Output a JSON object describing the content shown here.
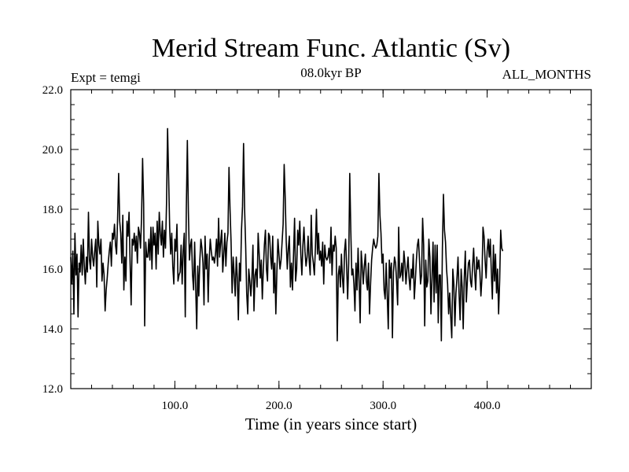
{
  "chart_data": {
    "type": "line",
    "title": "Merid Stream Func. Atlantic (Sv)",
    "left_note": "Expt = temgi",
    "center_note": "08.0kyr BP",
    "right_note": "ALL_MONTHS",
    "xlabel": "Time (in years since start)",
    "ylabel": "",
    "xlim": [
      0,
      500
    ],
    "ylim": [
      12,
      22
    ],
    "xticks": [
      100,
      200,
      300,
      400
    ],
    "xtick_labels": [
      "100.0",
      "200.0",
      "300.0",
      "400.0"
    ],
    "yticks": [
      12,
      14,
      16,
      18,
      20,
      22
    ],
    "ytick_labels": [
      "12.0",
      "14.0",
      "16.0",
      "18.0",
      "20.0",
      "22.0"
    ],
    "grid": false,
    "series": [
      {
        "name": "Merid Stream Func. Atlantic",
        "x_start": 0,
        "x_step": 1,
        "values": [
          16.4,
          15.5,
          16.6,
          14.5,
          17.2,
          15.8,
          16.5,
          14.4,
          16.2,
          15.9,
          16.8,
          15.8,
          17.0,
          16.1,
          15.5,
          16.4,
          15.9,
          17.9,
          16.3,
          16.0,
          17.0,
          16.4,
          16.1,
          16.6,
          17.0,
          15.4,
          17.6,
          16.8,
          16.5,
          17.0,
          15.6,
          16.2,
          15.8,
          14.6,
          15.3,
          15.7,
          16.2,
          16.6,
          16.9,
          16.1,
          17.2,
          17.0,
          17.5,
          16.8,
          16.5,
          17.7,
          19.2,
          17.6,
          17.2,
          16.2,
          17.8,
          15.3,
          16.4,
          15.6,
          17.6,
          17.1,
          17.9,
          16.2,
          14.8,
          17.0,
          16.8,
          17.2,
          16.6,
          17.1,
          16.2,
          17.4,
          17.2,
          16.7,
          17.7,
          19.7,
          18.2,
          14.1,
          16.9,
          16.4,
          16.4,
          17.0,
          16.3,
          17.4,
          16.0,
          17.4,
          16.8,
          17.2,
          16.0,
          17.6,
          16.5,
          17.9,
          17.2,
          16.8,
          17.6,
          16.4,
          17.3,
          16.7,
          18.2,
          20.7,
          19.1,
          17.4,
          16.5,
          17.2,
          16.1,
          15.5,
          17.0,
          16.6,
          17.5,
          15.6,
          15.8,
          15.9,
          16.8,
          15.5,
          16.6,
          17.2,
          14.4,
          18.0,
          20.3,
          17.9,
          16.3,
          16.8,
          17.0,
          15.8,
          15.3,
          16.9,
          15.4,
          14.0,
          16.1,
          15.1,
          16.3,
          17.0,
          16.7,
          16.2,
          14.8,
          17.1,
          16.0,
          16.5,
          14.9,
          16.3,
          17.0,
          16.6,
          16.3,
          16.4,
          16.2,
          16.5,
          17.0,
          16.1,
          17.7,
          16.4,
          16.9,
          17.3,
          15.9,
          16.5,
          17.2,
          16.1,
          16.9,
          17.2,
          19.4,
          18.0,
          16.9,
          15.2,
          16.4,
          15.8,
          15.1,
          16.4,
          15.7,
          14.3,
          16.2,
          15.6,
          17.3,
          18.1,
          20.2,
          18.0,
          16.8,
          15.2,
          14.5,
          16.0,
          15.6,
          15.1,
          15.7,
          16.8,
          14.6,
          15.8,
          16.0,
          15.4,
          17.2,
          16.5,
          15.7,
          16.3,
          15.0,
          16.0,
          16.8,
          17.3,
          16.0,
          15.6,
          17.2,
          17.1,
          16.4,
          16.0,
          17.1,
          15.2,
          16.2,
          14.5,
          15.9,
          17.0,
          16.5,
          16.0,
          16.3,
          16.9,
          17.5,
          19.5,
          18.4,
          16.9,
          16.0,
          16.7,
          17.1,
          15.4,
          16.2,
          15.3,
          16.5,
          17.7,
          15.6,
          16.0,
          17.3,
          16.8,
          17.6,
          16.5,
          15.8,
          16.8,
          17.4,
          16.6,
          16.1,
          16.4,
          17.1,
          16.3,
          15.8,
          17.8,
          16.5,
          16.2,
          15.8,
          16.7,
          18.0,
          16.5,
          17.2,
          16.3,
          16.6,
          16.1,
          16.9,
          15.5,
          16.8,
          16.4,
          16.3,
          16.4,
          16.7,
          16.2,
          17.4,
          15.8,
          16.8,
          16.6,
          17.1,
          16.7,
          13.6,
          15.8,
          16.1,
          15.4,
          16.5,
          15.7,
          15.2,
          16.6,
          17.0,
          16.1,
          15.0,
          16.2,
          19.2,
          17.3,
          15.8,
          16.0,
          15.5,
          14.6,
          16.2,
          15.3,
          16.7,
          15.6,
          14.2,
          16.6,
          16.1,
          15.5,
          16.1,
          16.5,
          15.6,
          15.3,
          16.2,
          14.5,
          15.5,
          16.3,
          16.7,
          17.0,
          16.8,
          16.7,
          16.8,
          17.1,
          19.2,
          17.8,
          17.2,
          16.2,
          16.5,
          15.3,
          15.0,
          16.2,
          15.1,
          14.0,
          16.3,
          15.7,
          16.2,
          13.7,
          15.9,
          16.4,
          16.2,
          15.6,
          14.8,
          17.4,
          15.7,
          15.8,
          16.2,
          15.6,
          16.6,
          16.2,
          15.5,
          16.0,
          16.4,
          15.7,
          15.3,
          16.0,
          15.7,
          16.5,
          15.0,
          15.6,
          16.3,
          16.8,
          17.0,
          16.3,
          15.5,
          15.8,
          17.7,
          16.8,
          14.1,
          16.3,
          15.4,
          15.6,
          17.0,
          16.4,
          14.5,
          15.7,
          16.9,
          14.9,
          16.8,
          15.2,
          16.8,
          14.2,
          15.8,
          15.8,
          13.6,
          16.7,
          18.5,
          17.3,
          16.9,
          16.0,
          15.5,
          14.5,
          15.2,
          14.4,
          13.7,
          16.0,
          15.5,
          14.1,
          15.2,
          15.7,
          16.4,
          15.2,
          14.3,
          16.0,
          15.4,
          14.0,
          15.7,
          16.6,
          14.9,
          15.6,
          16.2,
          16.3,
          15.6,
          15.4,
          16.1,
          16.7,
          15.9,
          15.3,
          16.4,
          16.0,
          16.3,
          15.9,
          15.1,
          15.7,
          17.4,
          17.1,
          16.3,
          15.7,
          16.6,
          17.0,
          16.4,
          17.0,
          15.9,
          15.0,
          16.8,
          15.6,
          16.5,
          15.2,
          16.0,
          14.5,
          15.6,
          17.3,
          16.7,
          16.6
        ]
      }
    ]
  }
}
